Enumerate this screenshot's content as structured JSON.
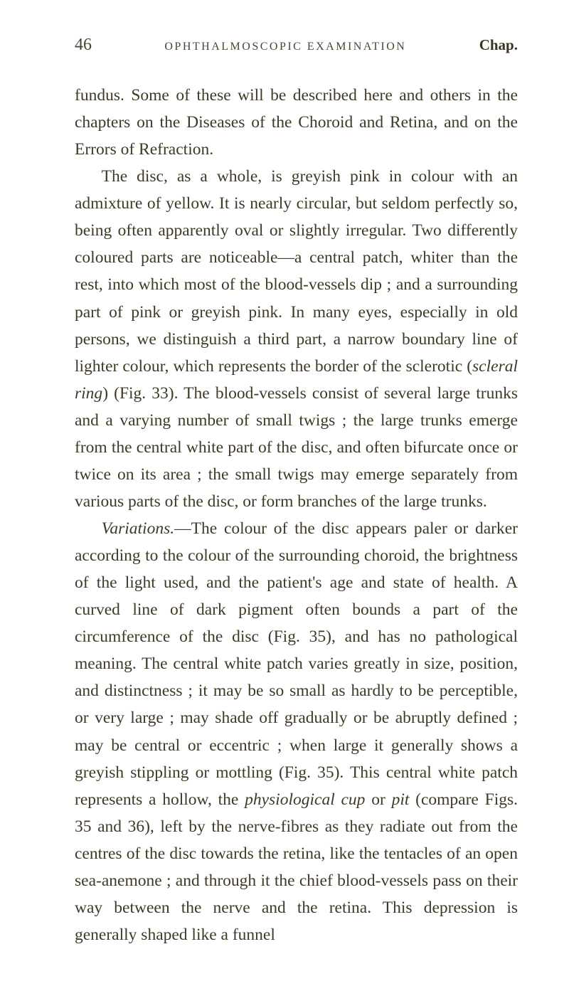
{
  "header": {
    "page_number": "46",
    "running_head": "OPHTHALMOSCOPIC EXAMINATION",
    "chapter_label": "Chap."
  },
  "paragraphs": {
    "p1_pre": "fundus. Some of these will be described here and others in the chapters on the Diseases of the Choroid and Retina, and on the Errors of Refraction.",
    "p2_a": "The disc, as a whole, is greyish pink in colour with an admixture of yellow. It is nearly circular, but seldom perfectly so, being often apparently oval or slightly irregular. Two differently coloured parts are noticeable—a central patch, whiter than the rest, into which most of the blood-vessels dip ; and a surrounding part of pink or greyish pink. In many eyes, especially in old persons, we distinguish a third part, a narrow boundary line of lighter colour, which represents the border of the sclerotic (",
    "p2_i1": "scleral ring",
    "p2_b": ") (Fig. 33). The blood-vessels consist of several large trunks and a varying number of small twigs ; the large trunks emerge from the central white part of the disc, and often bifurcate once or twice on its area ; the small twigs may emerge separately from various parts of the disc, or form branches of the large trunks.",
    "p3_i1": "Variations.",
    "p3_a": "—The colour of the disc appears paler or darker according to the colour of the surrounding choroid, the brightness of the light used, and the patient's age and state of health. A curved line of dark pigment often bounds a part of the circumference of the disc (Fig. 35), and has no pathological meaning. The central white patch varies greatly in size, position, and distinctness ; it may be so small as hardly to be perceptible, or very large ; may shade off gradually or be abruptly defined ; may be central or eccentric ; when large it generally shows a greyish stippling or mottling (Fig. 35). This central white patch represents a hollow, the ",
    "p3_i2": "physiological cup",
    "p3_b": " or ",
    "p3_i3": "pit",
    "p3_c": " (compare Figs. 35 and 36), left by the nerve-fibres as they radiate out from the centres of the disc towards the retina, like the tentacles of an open sea-anemone ; and through it the chief blood-vessels pass on their way between the nerve and the retina. This depression is generally shaped like a funnel"
  },
  "colors": {
    "background": "#ffffff",
    "text": "#3e3a26",
    "stain1": "#e8dfc4",
    "stain2": "#ede6d0"
  }
}
